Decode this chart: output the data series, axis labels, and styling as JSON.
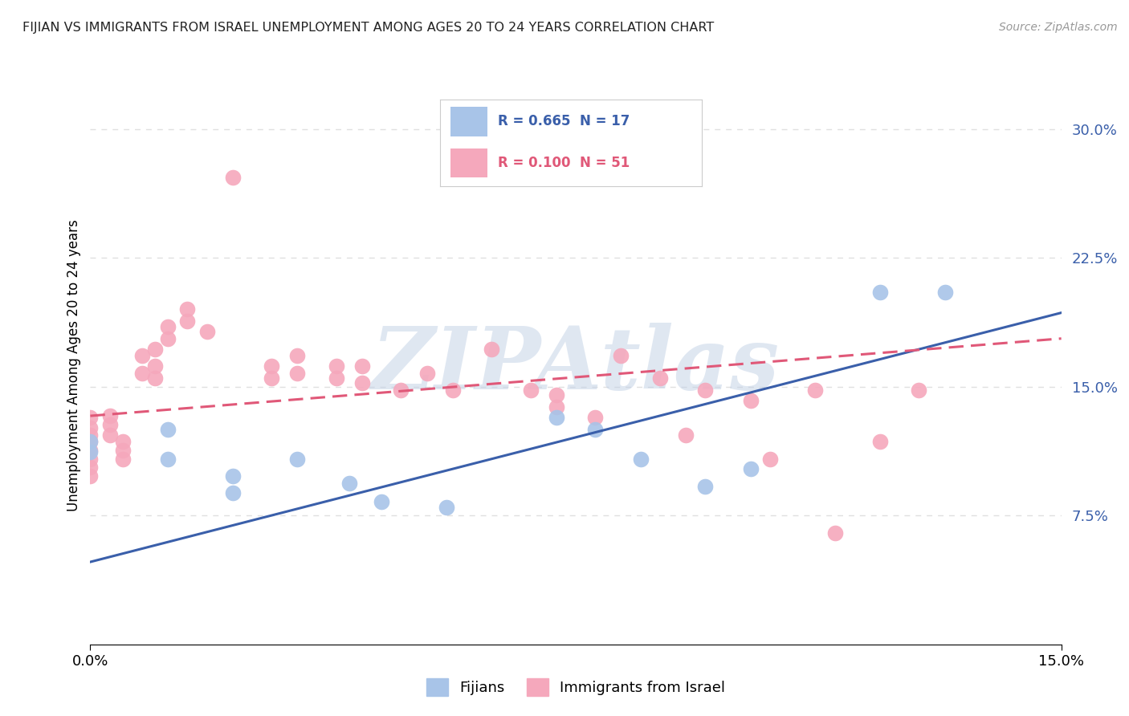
{
  "title": "FIJIAN VS IMMIGRANTS FROM ISRAEL UNEMPLOYMENT AMONG AGES 20 TO 24 YEARS CORRELATION CHART",
  "source": "Source: ZipAtlas.com",
  "ylabel": "Unemployment Among Ages 20 to 24 years",
  "xlim": [
    0.0,
    0.15
  ],
  "ylim": [
    0.0,
    0.325
  ],
  "yticks": [
    0.075,
    0.15,
    0.225,
    0.3
  ],
  "ytick_labels": [
    "7.5%",
    "15.0%",
    "22.5%",
    "30.0%"
  ],
  "xticks": [
    0.0,
    0.15
  ],
  "xtick_labels": [
    "0.0%",
    "15.0%"
  ],
  "fijian_color": "#a8c4e8",
  "israel_color": "#f5a8bc",
  "fijian_line_color": "#3a5faa",
  "israel_line_color": "#e05878",
  "fijian_R": 0.665,
  "fijian_N": 17,
  "israel_R": 0.1,
  "israel_N": 51,
  "fijian_line": [
    0.0,
    0.048,
    0.15,
    0.193
  ],
  "israel_line": [
    0.0,
    0.133,
    0.15,
    0.178
  ],
  "fijian_points": [
    [
      0.0,
      0.118
    ],
    [
      0.0,
      0.112
    ],
    [
      0.012,
      0.125
    ],
    [
      0.012,
      0.108
    ],
    [
      0.022,
      0.098
    ],
    [
      0.022,
      0.088
    ],
    [
      0.032,
      0.108
    ],
    [
      0.04,
      0.094
    ],
    [
      0.045,
      0.083
    ],
    [
      0.055,
      0.08
    ],
    [
      0.072,
      0.132
    ],
    [
      0.078,
      0.125
    ],
    [
      0.085,
      0.108
    ],
    [
      0.095,
      0.092
    ],
    [
      0.102,
      0.102
    ],
    [
      0.122,
      0.205
    ],
    [
      0.132,
      0.205
    ]
  ],
  "israel_points": [
    [
      0.0,
      0.132
    ],
    [
      0.0,
      0.126
    ],
    [
      0.0,
      0.122
    ],
    [
      0.0,
      0.118
    ],
    [
      0.0,
      0.113
    ],
    [
      0.0,
      0.108
    ],
    [
      0.0,
      0.103
    ],
    [
      0.0,
      0.098
    ],
    [
      0.003,
      0.133
    ],
    [
      0.003,
      0.128
    ],
    [
      0.003,
      0.122
    ],
    [
      0.005,
      0.118
    ],
    [
      0.005,
      0.113
    ],
    [
      0.005,
      0.108
    ],
    [
      0.008,
      0.168
    ],
    [
      0.008,
      0.158
    ],
    [
      0.01,
      0.172
    ],
    [
      0.01,
      0.162
    ],
    [
      0.01,
      0.155
    ],
    [
      0.012,
      0.185
    ],
    [
      0.012,
      0.178
    ],
    [
      0.015,
      0.195
    ],
    [
      0.015,
      0.188
    ],
    [
      0.018,
      0.182
    ],
    [
      0.022,
      0.272
    ],
    [
      0.028,
      0.162
    ],
    [
      0.028,
      0.155
    ],
    [
      0.032,
      0.168
    ],
    [
      0.032,
      0.158
    ],
    [
      0.038,
      0.162
    ],
    [
      0.038,
      0.155
    ],
    [
      0.042,
      0.162
    ],
    [
      0.042,
      0.152
    ],
    [
      0.048,
      0.148
    ],
    [
      0.052,
      0.158
    ],
    [
      0.056,
      0.148
    ],
    [
      0.062,
      0.172
    ],
    [
      0.068,
      0.148
    ],
    [
      0.072,
      0.145
    ],
    [
      0.072,
      0.138
    ],
    [
      0.078,
      0.132
    ],
    [
      0.082,
      0.168
    ],
    [
      0.088,
      0.155
    ],
    [
      0.092,
      0.122
    ],
    [
      0.095,
      0.148
    ],
    [
      0.102,
      0.142
    ],
    [
      0.105,
      0.108
    ],
    [
      0.112,
      0.148
    ],
    [
      0.115,
      0.065
    ],
    [
      0.122,
      0.118
    ],
    [
      0.128,
      0.148
    ]
  ],
  "background_color": "#ffffff",
  "grid_color": "#e0e0e0",
  "watermark": "ZIPAtlas",
  "watermark_color": "#c0d0e5"
}
